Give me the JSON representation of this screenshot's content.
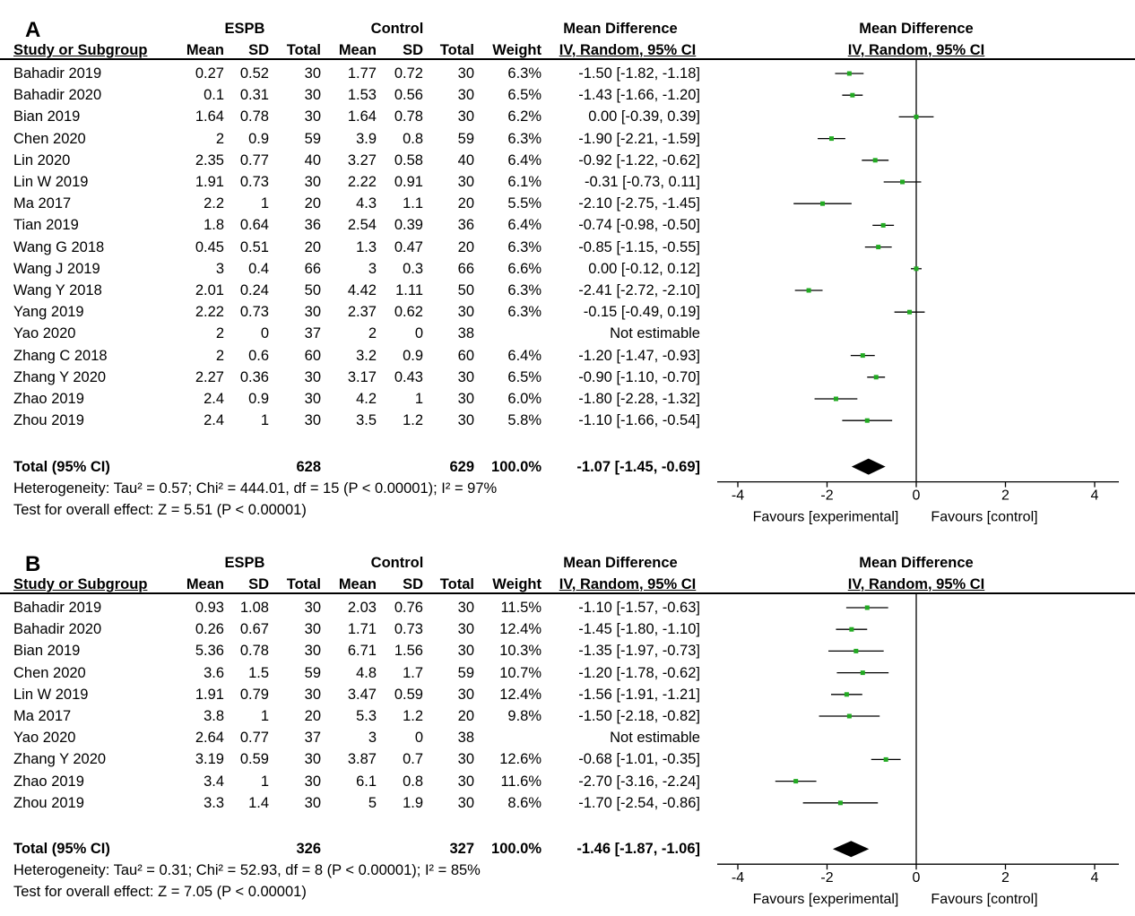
{
  "panels": [
    {
      "id": "A",
      "letter": "A",
      "header": {
        "group1": "ESPB",
        "group2": "Control",
        "effect": "Mean Difference",
        "plot_title": "Mean Difference",
        "study_col": "Study or Subgroup",
        "mean": "Mean",
        "sd": "SD",
        "total": "Total",
        "weight": "Weight",
        "method": "IV, Random, 95% CI",
        "plot_method": "IV, Random, 95% CI"
      },
      "studies": [
        {
          "name": "Bahadir 2019",
          "m1": "0.27",
          "sd1": "0.52",
          "n1": "30",
          "m2": "1.77",
          "sd2": "0.72",
          "n2": "30",
          "weight": "6.3%",
          "ci": "-1.50 [-1.82, -1.18]"
        },
        {
          "name": "Bahadir 2020",
          "m1": "0.1",
          "sd1": "0.31",
          "n1": "30",
          "m2": "1.53",
          "sd2": "0.56",
          "n2": "30",
          "weight": "6.5%",
          "ci": "-1.43 [-1.66, -1.20]"
        },
        {
          "name": "Bian 2019",
          "m1": "1.64",
          "sd1": "0.78",
          "n1": "30",
          "m2": "1.64",
          "sd2": "0.78",
          "n2": "30",
          "weight": "6.2%",
          "ci": "0.00 [-0.39, 0.39]"
        },
        {
          "name": "Chen 2020",
          "m1": "2",
          "sd1": "0.9",
          "n1": "59",
          "m2": "3.9",
          "sd2": "0.8",
          "n2": "59",
          "weight": "6.3%",
          "ci": "-1.90 [-2.21, -1.59]"
        },
        {
          "name": "Lin 2020",
          "m1": "2.35",
          "sd1": "0.77",
          "n1": "40",
          "m2": "3.27",
          "sd2": "0.58",
          "n2": "40",
          "weight": "6.4%",
          "ci": "-0.92 [-1.22, -0.62]"
        },
        {
          "name": "Lin W 2019",
          "m1": "1.91",
          "sd1": "0.73",
          "n1": "30",
          "m2": "2.22",
          "sd2": "0.91",
          "n2": "30",
          "weight": "6.1%",
          "ci": "-0.31 [-0.73, 0.11]"
        },
        {
          "name": "Ma 2017",
          "m1": "2.2",
          "sd1": "1",
          "n1": "20",
          "m2": "4.3",
          "sd2": "1.1",
          "n2": "20",
          "weight": "5.5%",
          "ci": "-2.10 [-2.75, -1.45]"
        },
        {
          "name": "Tian 2019",
          "m1": "1.8",
          "sd1": "0.64",
          "n1": "36",
          "m2": "2.54",
          "sd2": "0.39",
          "n2": "36",
          "weight": "6.4%",
          "ci": "-0.74 [-0.98, -0.50]"
        },
        {
          "name": "Wang G 2018",
          "m1": "0.45",
          "sd1": "0.51",
          "n1": "20",
          "m2": "1.3",
          "sd2": "0.47",
          "n2": "20",
          "weight": "6.3%",
          "ci": "-0.85 [-1.15, -0.55]"
        },
        {
          "name": "Wang J 2019",
          "m1": "3",
          "sd1": "0.4",
          "n1": "66",
          "m2": "3",
          "sd2": "0.3",
          "n2": "66",
          "weight": "6.6%",
          "ci": "0.00 [-0.12, 0.12]"
        },
        {
          "name": "Wang Y 2018",
          "m1": "2.01",
          "sd1": "0.24",
          "n1": "50",
          "m2": "4.42",
          "sd2": "1.11",
          "n2": "50",
          "weight": "6.3%",
          "ci": "-2.41 [-2.72, -2.10]"
        },
        {
          "name": "Yang 2019",
          "m1": "2.22",
          "sd1": "0.73",
          "n1": "30",
          "m2": "2.37",
          "sd2": "0.62",
          "n2": "30",
          "weight": "6.3%",
          "ci": "-0.15 [-0.49, 0.19]"
        },
        {
          "name": "Yao 2020",
          "m1": "2",
          "sd1": "0",
          "n1": "37",
          "m2": "2",
          "sd2": "0",
          "n2": "38",
          "weight": "",
          "ci": "Not estimable"
        },
        {
          "name": "Zhang C 2018",
          "m1": "2",
          "sd1": "0.6",
          "n1": "60",
          "m2": "3.2",
          "sd2": "0.9",
          "n2": "60",
          "weight": "6.4%",
          "ci": "-1.20 [-1.47, -0.93]"
        },
        {
          "name": "Zhang Y 2020",
          "m1": "2.27",
          "sd1": "0.36",
          "n1": "30",
          "m2": "3.17",
          "sd2": "0.43",
          "n2": "30",
          "weight": "6.5%",
          "ci": "-0.90 [-1.10, -0.70]"
        },
        {
          "name": "Zhao 2019",
          "m1": "2.4",
          "sd1": "0.9",
          "n1": "30",
          "m2": "4.2",
          "sd2": "1",
          "n2": "30",
          "weight": "6.0%",
          "ci": "-1.80 [-2.28, -1.32]"
        },
        {
          "name": "Zhou 2019",
          "m1": "2.4",
          "sd1": "1",
          "n1": "30",
          "m2": "3.5",
          "sd2": "1.2",
          "n2": "30",
          "weight": "5.8%",
          "ci": "-1.10 [-1.66, -0.54]"
        }
      ],
      "total": {
        "label": "Total (95% CI)",
        "n1": "628",
        "n2": "629",
        "weight": "100.0%",
        "ci": "-1.07 [-1.45, -0.69]"
      },
      "heterogeneity": "Heterogeneity: Tau² = 0.57; Chi² = 444.01, df = 15 (P < 0.00001); I² = 97%",
      "overall": "Test for overall effect: Z = 5.51 (P < 0.00001)",
      "axis": {
        "ticks": [
          "-4",
          "-2",
          "0",
          "2",
          "4"
        ],
        "left_label": "Favours [experimental]",
        "right_label": "Favours [control]"
      }
    },
    {
      "id": "B",
      "letter": "B",
      "header": {
        "group1": "ESPB",
        "group2": "Control",
        "effect": "Mean Difference",
        "plot_title": "Mean Difference",
        "study_col": "Study or Subgroup",
        "mean": "Mean",
        "sd": "SD",
        "total": "Total",
        "weight": "Weight",
        "method": "IV, Random, 95% CI",
        "plot_method": "IV, Random, 95% CI"
      },
      "studies": [
        {
          "name": "Bahadir 2019",
          "m1": "0.93",
          "sd1": "1.08",
          "n1": "30",
          "m2": "2.03",
          "sd2": "0.76",
          "n2": "30",
          "weight": "11.5%",
          "ci": "-1.10 [-1.57, -0.63]"
        },
        {
          "name": "Bahadir 2020",
          "m1": "0.26",
          "sd1": "0.67",
          "n1": "30",
          "m2": "1.71",
          "sd2": "0.73",
          "n2": "30",
          "weight": "12.4%",
          "ci": "-1.45 [-1.80, -1.10]"
        },
        {
          "name": "Bian 2019",
          "m1": "5.36",
          "sd1": "0.78",
          "n1": "30",
          "m2": "6.71",
          "sd2": "1.56",
          "n2": "30",
          "weight": "10.3%",
          "ci": "-1.35 [-1.97, -0.73]"
        },
        {
          "name": "Chen 2020",
          "m1": "3.6",
          "sd1": "1.5",
          "n1": "59",
          "m2": "4.8",
          "sd2": "1.7",
          "n2": "59",
          "weight": "10.7%",
          "ci": "-1.20 [-1.78, -0.62]"
        },
        {
          "name": "Lin W 2019",
          "m1": "1.91",
          "sd1": "0.79",
          "n1": "30",
          "m2": "3.47",
          "sd2": "0.59",
          "n2": "30",
          "weight": "12.4%",
          "ci": "-1.56 [-1.91, -1.21]"
        },
        {
          "name": "Ma 2017",
          "m1": "3.8",
          "sd1": "1",
          "n1": "20",
          "m2": "5.3",
          "sd2": "1.2",
          "n2": "20",
          "weight": "9.8%",
          "ci": "-1.50 [-2.18, -0.82]"
        },
        {
          "name": "Yao 2020",
          "m1": "2.64",
          "sd1": "0.77",
          "n1": "37",
          "m2": "3",
          "sd2": "0",
          "n2": "38",
          "weight": "",
          "ci": "Not estimable"
        },
        {
          "name": "Zhang Y 2020",
          "m1": "3.19",
          "sd1": "0.59",
          "n1": "30",
          "m2": "3.87",
          "sd2": "0.7",
          "n2": "30",
          "weight": "12.6%",
          "ci": "-0.68 [-1.01, -0.35]"
        },
        {
          "name": "Zhao 2019",
          "m1": "3.4",
          "sd1": "1",
          "n1": "30",
          "m2": "6.1",
          "sd2": "0.8",
          "n2": "30",
          "weight": "11.6%",
          "ci": "-2.70 [-3.16, -2.24]"
        },
        {
          "name": "Zhou 2019",
          "m1": "3.3",
          "sd1": "1.4",
          "n1": "30",
          "m2": "5",
          "sd2": "1.9",
          "n2": "30",
          "weight": "8.6%",
          "ci": "-1.70 [-2.54, -0.86]"
        }
      ],
      "total": {
        "label": "Total (95% CI)",
        "n1": "326",
        "n2": "327",
        "weight": "100.0%",
        "ci": "-1.46 [-1.87, -1.06]"
      },
      "heterogeneity": "Heterogeneity: Tau² = 0.31; Chi² = 52.93, df = 8 (P < 0.00001); I² = 85%",
      "overall": "Test for overall effect: Z = 7.05 (P < 0.00001)",
      "axis": {
        "ticks": [
          "-4",
          "-2",
          "0",
          "2",
          "4"
        ],
        "left_label": "Favours [experimental]",
        "right_label": "Favours [control]"
      }
    }
  ],
  "chart_data": [
    {
      "type": "forest",
      "xlim": [
        -4,
        4
      ],
      "ticks": [
        -4,
        -2,
        0,
        2,
        4
      ],
      "point_color": "#22aa22",
      "series": [
        {
          "name": "Bahadir 2019",
          "md": -1.5,
          "lo": -1.82,
          "hi": -1.18
        },
        {
          "name": "Bahadir 2020",
          "md": -1.43,
          "lo": -1.66,
          "hi": -1.2
        },
        {
          "name": "Bian 2019",
          "md": 0.0,
          "lo": -0.39,
          "hi": 0.39
        },
        {
          "name": "Chen 2020",
          "md": -1.9,
          "lo": -2.21,
          "hi": -1.59
        },
        {
          "name": "Lin 2020",
          "md": -0.92,
          "lo": -1.22,
          "hi": -0.62
        },
        {
          "name": "Lin W 2019",
          "md": -0.31,
          "lo": -0.73,
          "hi": 0.11
        },
        {
          "name": "Ma 2017",
          "md": -2.1,
          "lo": -2.75,
          "hi": -1.45
        },
        {
          "name": "Tian 2019",
          "md": -0.74,
          "lo": -0.98,
          "hi": -0.5
        },
        {
          "name": "Wang G 2018",
          "md": -0.85,
          "lo": -1.15,
          "hi": -0.55
        },
        {
          "name": "Wang J 2019",
          "md": 0.0,
          "lo": -0.12,
          "hi": 0.12
        },
        {
          "name": "Wang Y 2018",
          "md": -2.41,
          "lo": -2.72,
          "hi": -2.1
        },
        {
          "name": "Yang 2019",
          "md": -0.15,
          "lo": -0.49,
          "hi": 0.19
        },
        {
          "name": "Yao 2020",
          "md": null,
          "lo": null,
          "hi": null
        },
        {
          "name": "Zhang C 2018",
          "md": -1.2,
          "lo": -1.47,
          "hi": -0.93
        },
        {
          "name": "Zhang Y 2020",
          "md": -0.9,
          "lo": -1.1,
          "hi": -0.7
        },
        {
          "name": "Zhao 2019",
          "md": -1.8,
          "lo": -2.28,
          "hi": -1.32
        },
        {
          "name": "Zhou 2019",
          "md": -1.1,
          "lo": -1.66,
          "hi": -0.54
        }
      ],
      "pooled": {
        "md": -1.07,
        "lo": -1.45,
        "hi": -0.69
      }
    },
    {
      "type": "forest",
      "xlim": [
        -4,
        4
      ],
      "ticks": [
        -4,
        -2,
        0,
        2,
        4
      ],
      "point_color": "#22aa22",
      "series": [
        {
          "name": "Bahadir 2019",
          "md": -1.1,
          "lo": -1.57,
          "hi": -0.63
        },
        {
          "name": "Bahadir 2020",
          "md": -1.45,
          "lo": -1.8,
          "hi": -1.1
        },
        {
          "name": "Bian 2019",
          "md": -1.35,
          "lo": -1.97,
          "hi": -0.73
        },
        {
          "name": "Chen 2020",
          "md": -1.2,
          "lo": -1.78,
          "hi": -0.62
        },
        {
          "name": "Lin W 2019",
          "md": -1.56,
          "lo": -1.91,
          "hi": -1.21
        },
        {
          "name": "Ma 2017",
          "md": -1.5,
          "lo": -2.18,
          "hi": -0.82
        },
        {
          "name": "Yao 2020",
          "md": null,
          "lo": null,
          "hi": null
        },
        {
          "name": "Zhang Y 2020",
          "md": -0.68,
          "lo": -1.01,
          "hi": -0.35
        },
        {
          "name": "Zhao 2019",
          "md": -2.7,
          "lo": -3.16,
          "hi": -2.24
        },
        {
          "name": "Zhou 2019",
          "md": -1.7,
          "lo": -2.54,
          "hi": -0.86
        }
      ],
      "pooled": {
        "md": -1.46,
        "lo": -1.87,
        "hi": -1.06
      }
    }
  ]
}
